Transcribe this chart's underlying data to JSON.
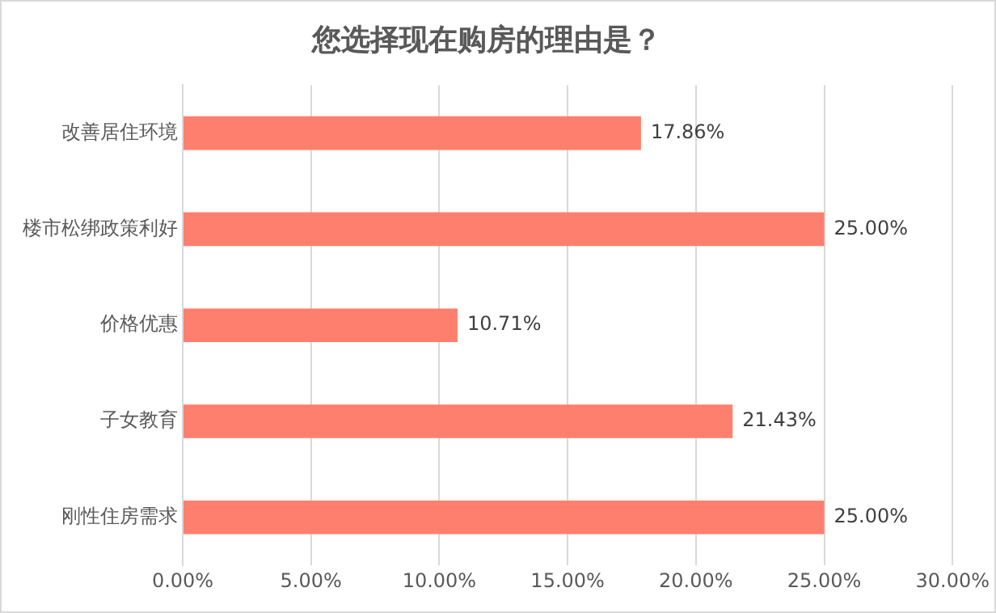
{
  "chart_data": {
    "type": "bar",
    "orientation": "horizontal",
    "title": "您选择现在购房的理由是？",
    "categories": [
      "改善居住环境",
      "楼市松绑政策利好",
      "价格优惠",
      "子女教育",
      "刚性住房需求"
    ],
    "values": [
      17.86,
      25,
      10.71,
      21.43,
      25
    ],
    "value_labels": [
      "17.86%",
      "25.00%",
      "10.71%",
      "21.43%",
      "25.00%"
    ],
    "color": "#ff7f6e",
    "xlim": [
      0,
      30
    ],
    "xticks": [
      {
        "value": 0,
        "label": "0.00%"
      },
      {
        "value": 5,
        "label": "5.00%"
      },
      {
        "value": 10,
        "label": "10.00%"
      },
      {
        "value": 15,
        "label": "15.00%"
      },
      {
        "value": 20,
        "label": "20.00%"
      },
      {
        "value": 25,
        "label": "25.00%"
      },
      {
        "value": 30,
        "label": "30.00%"
      }
    ],
    "grid": "x",
    "legend": false
  }
}
